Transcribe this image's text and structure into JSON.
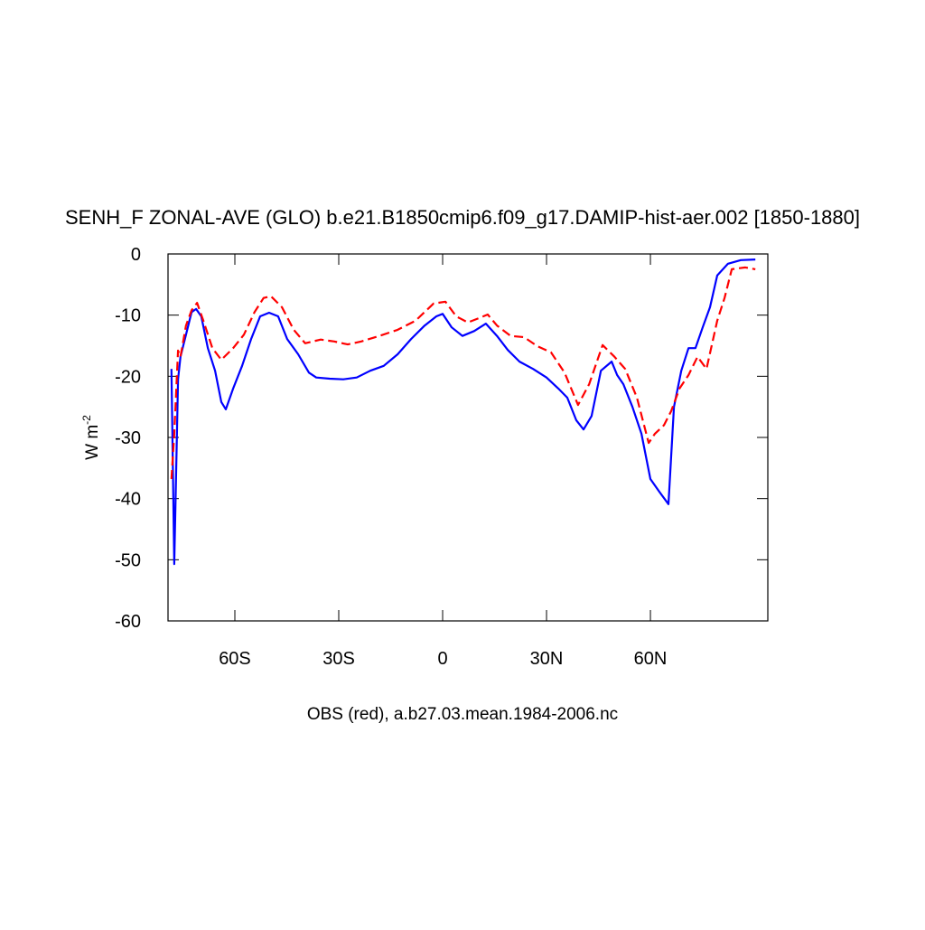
{
  "chart_data": {
    "type": "line",
    "title": "SENH_F ZONAL-AVE (GLO) b.e21.B1850cmip6.f09_g17.DAMIP-hist-aer.002 [1850-1880]",
    "subtitle": "OBS (red), a.b27.03.mean.1984-2006.nc",
    "ylabel": {
      "text": "W m",
      "superscript": "-2"
    },
    "xlim": [
      -79.3,
      93.9
    ],
    "ylim": [
      -60,
      0
    ],
    "xticks": [
      {
        "value": -60,
        "label": "60S"
      },
      {
        "value": -30,
        "label": "30S"
      },
      0,
      {
        "value": 30,
        "label": "30N"
      },
      {
        "value": 60,
        "label": "60N"
      }
    ],
    "yticks": [
      0,
      -10,
      -20,
      -30,
      -40,
      -50,
      -60
    ],
    "series": [
      {
        "color": "#0000ff",
        "dash": false,
        "x": [
          -78.3,
          -77.5,
          -76.4,
          -75.7,
          -74.1,
          -72.5,
          -71.2,
          -69.7,
          -67.8,
          -65.7,
          -63.9,
          -62.6,
          -60.5,
          -57.9,
          -55.3,
          -52.7,
          -50.1,
          -47.5,
          -44.9,
          -41.7,
          -38.6,
          -36.5,
          -32.6,
          -28.7,
          -24.8,
          -20.9,
          -17.0,
          -13.0,
          -9.1,
          -5.2,
          -1.8,
          0,
          2.6,
          5.7,
          9.1,
          12.5,
          15.7,
          18.8,
          22.2,
          26.1,
          30,
          33.4,
          36,
          38.6,
          40.7,
          43,
          45.7,
          48.8,
          50.4,
          52.2,
          54.8,
          57.4,
          60,
          62.6,
          65.2,
          66.8,
          68.9,
          71,
          73,
          75.1,
          77.2,
          79.3,
          82.4,
          86.1,
          90.3
        ],
        "values": [
          -18.8,
          -50.7,
          -20.5,
          -16.8,
          -13.2,
          -9.5,
          -9.0,
          -10.2,
          -15.4,
          -19.1,
          -24.2,
          -25.4,
          -22.0,
          -18.3,
          -13.9,
          -10.2,
          -9.6,
          -10.2,
          -13.9,
          -16.4,
          -19.4,
          -20.2,
          -20.4,
          -20.5,
          -20.2,
          -19.1,
          -18.3,
          -16.4,
          -13.9,
          -11.7,
          -10.2,
          -9.8,
          -12.0,
          -13.4,
          -12.6,
          -11.4,
          -13.4,
          -15.7,
          -17.6,
          -18.8,
          -20.2,
          -22.0,
          -23.5,
          -27.2,
          -28.7,
          -26.5,
          -19.1,
          -17.6,
          -19.8,
          -21.3,
          -25.0,
          -29.4,
          -36.8,
          -38.9,
          -40.9,
          -25.0,
          -19.1,
          -15.4,
          -15.4,
          -12.0,
          -8.7,
          -3.5,
          -1.6,
          -1.0,
          -0.9
        ]
      },
      {
        "color": "#ff0000",
        "dash": true,
        "x": [
          -78.3,
          -77.5,
          -76.4,
          -75.7,
          -74.1,
          -72.5,
          -70.9,
          -69.1,
          -66.5,
          -63.9,
          -60.5,
          -57.4,
          -54.3,
          -51.7,
          -49.6,
          -46.4,
          -43.0,
          -39.7,
          -35.2,
          -31.3,
          -27.4,
          -23.5,
          -18.3,
          -13.0,
          -7.8,
          -2.6,
          0.8,
          3.9,
          7.3,
          10.4,
          13,
          15.7,
          19.6,
          23.5,
          27.4,
          31.3,
          35.2,
          39.1,
          42.3,
          46.2,
          49.6,
          52.7,
          56.1,
          59.5,
          61.3,
          63.9,
          66,
          68.4,
          71,
          73.6,
          76.2,
          79.3,
          81.4,
          83.5,
          87.4,
          90.3
        ],
        "values": [
          -36.8,
          -29.4,
          -15.8,
          -16.8,
          -11.7,
          -9.2,
          -8.0,
          -10.9,
          -15.4,
          -17.3,
          -15.4,
          -13.2,
          -9.5,
          -7.2,
          -6.9,
          -8.7,
          -12.4,
          -14.6,
          -14.0,
          -14.3,
          -14.8,
          -14.3,
          -13.4,
          -12.4,
          -10.9,
          -8.1,
          -7.8,
          -10.2,
          -11.2,
          -10.5,
          -9.9,
          -11.7,
          -13.4,
          -13.6,
          -15.1,
          -16.1,
          -19.4,
          -24.7,
          -21.3,
          -14.9,
          -16.8,
          -18.8,
          -23.5,
          -30.9,
          -29.4,
          -28.0,
          -25.7,
          -22.0,
          -19.8,
          -16.8,
          -18.8,
          -10.9,
          -7.2,
          -2.5,
          -2.2,
          -2.5
        ]
      }
    ]
  }
}
